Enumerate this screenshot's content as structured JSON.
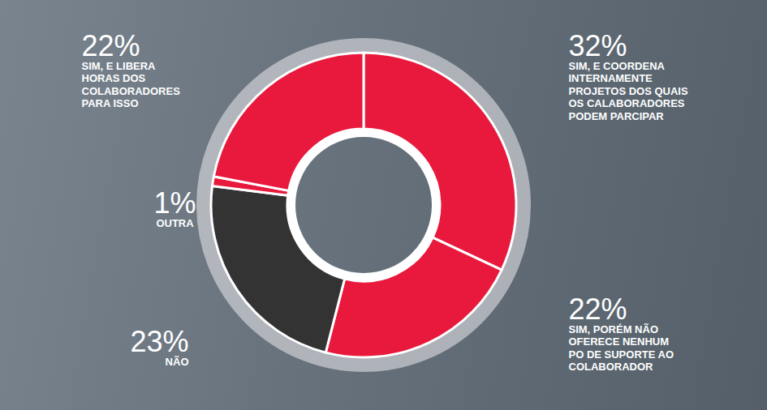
{
  "chart_data": {
    "type": "donut",
    "categories": [
      "SIM, E COORDENA INTERNAMENTE PROJETOS DOS QUAIS OS CALABORADORES PODEM PARCIPAR",
      "SIM, PORÉM NÃO OFERECE NENHUM PO DE SUPORTE AO COLABORADOR",
      "NÃO",
      "OUTRA",
      "SIM, E LIBERA HORAS DOS COLABORADORES PARA ISSO"
    ],
    "values": [
      32,
      22,
      23,
      1,
      22
    ],
    "value_labels": [
      "32%",
      "22%",
      "23%",
      "1%",
      "22%"
    ],
    "colors": [
      "#e8193c",
      "#e8193c",
      "#333333",
      "#e8193c",
      "#e8193c"
    ],
    "data_labels": true
  }
}
